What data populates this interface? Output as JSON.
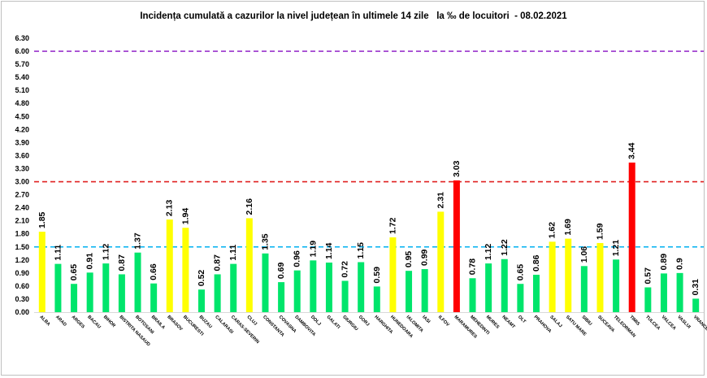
{
  "chart_data": {
    "type": "bar",
    "title": "Incidența cumulată a cazurilor la nivel județean în ultimele 14 zile   la ‰ de locuitori  - 08.02.2021",
    "xlabel": "",
    "ylabel": "",
    "ylim": [
      0,
      6.3
    ],
    "y_ticks": [
      "0.00",
      "0.30",
      "0.60",
      "0.90",
      "1.20",
      "1.50",
      "1.80",
      "2.10",
      "2.40",
      "2.70",
      "3.00",
      "3.30",
      "3.60",
      "3.90",
      "4.20",
      "4.50",
      "4.80",
      "5.10",
      "5.40",
      "5.70",
      "6.00",
      "6.30"
    ],
    "grid": false,
    "categories": [
      "ALBA",
      "ARAD",
      "ARGES",
      "BACAU",
      "BIHOR",
      "BISTRITA NASAUD",
      "BOTOSANI",
      "BRAILA",
      "BRASOV",
      "BUCURESTI",
      "BUZAU",
      "CALARASI",
      "CARAS-SEVERIN",
      "CLUJ",
      "CONSTANTA",
      "COVASNA",
      "DAMBOVITA",
      "DOLJ",
      "GALATI",
      "GIURGIU",
      "GORJ",
      "HARGHITA",
      "HUNEDOARA",
      "IALOMITA",
      "IASI",
      "ILFOV",
      "MARAMURES",
      "MEHEDINTI",
      "MURES",
      "NEAMT",
      "OLT",
      "PRAHOVA",
      "SALAJ",
      "SATU MARE",
      "SIBIU",
      "SUCEAVA",
      "TELEORMAN",
      "TIMIS",
      "TULCEA",
      "VALCEA",
      "VASLUI",
      "VRANCEA"
    ],
    "values": [
      1.85,
      1.11,
      0.65,
      0.91,
      1.12,
      0.87,
      1.37,
      0.66,
      2.13,
      1.94,
      0.52,
      0.87,
      1.11,
      2.16,
      1.35,
      0.69,
      0.96,
      1.19,
      1.14,
      0.72,
      1.15,
      0.59,
      1.72,
      0.95,
      0.99,
      2.31,
      3.03,
      0.78,
      1.12,
      1.22,
      0.65,
      0.86,
      1.62,
      1.69,
      1.06,
      1.59,
      1.21,
      3.44,
      0.57,
      0.89,
      0.9,
      0.31
    ],
    "value_labels": [
      "1.85",
      "1.11",
      "0.65",
      "0.91",
      "1.12",
      "0.87",
      "1.37",
      "0.66",
      "2.13",
      "1.94",
      "0.52",
      "0.87",
      "1.11",
      "2.16",
      "1.35",
      "0.69",
      "0.96",
      "1.19",
      "1.14",
      "0.72",
      "1.15",
      "0.59",
      "1.72",
      "0.95",
      "0.99",
      "2.31",
      "3.03",
      "0.78",
      "1.12",
      "1.22",
      "0.65",
      "0.86",
      "1.62",
      "1.69",
      "1.06",
      "1.59",
      "1.21",
      "3.44",
      "0.57",
      "0.89",
      "0.9",
      "0.31"
    ],
    "bar_colors": {
      "green": "#00e56b",
      "yellow": "#ffff00",
      "red": "#ff0000"
    },
    "thresholds": [
      {
        "value": 1.5,
        "color": "#00b0f0"
      },
      {
        "value": 3.0,
        "color": "#e02020"
      },
      {
        "value": 6.0,
        "color": "#9933cc"
      }
    ]
  }
}
